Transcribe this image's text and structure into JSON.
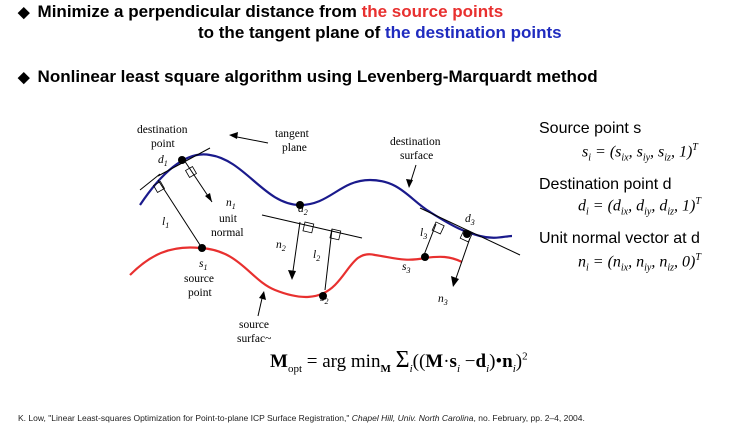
{
  "bullets": {
    "b1_line1_prefix": "Minimize a perpendicular distance from ",
    "b1_line1_highlight": "the source points",
    "b1_line2_prefix": "to the tangent plane of ",
    "b1_line2_highlight": "the destination points",
    "b2": "Nonlinear least square algorithm using Levenberg-Marquardt method",
    "marker": "◆"
  },
  "diagram": {
    "destination_point_label_1": "destination",
    "destination_point_label_2": "point",
    "d1": "d",
    "d1_sub": "1",
    "tangent_plane_1": "tangent",
    "tangent_plane_2": "plane",
    "destination_surface_1": "destination",
    "destination_surface_2": "surface",
    "n1": "n",
    "n1_sub": "1",
    "unit_normal_1": "unit",
    "unit_normal_2": "normal",
    "l1": "l",
    "l1_sub": "1",
    "d2": "d",
    "d2_sub": "2",
    "n2": "n",
    "n2_sub": "2",
    "l2": "l",
    "l2_sub": "2",
    "d3": "d",
    "d3_sub": "3",
    "l3": "l",
    "l3_sub": "3",
    "s1": "s",
    "s1_sub": "1",
    "source_point_1": "source",
    "source_point_2": "point",
    "s2": "s",
    "s2_sub": "2",
    "s3": "s",
    "s3_sub": "3",
    "n3": "n",
    "n3_sub": "3",
    "source_surface_1": "source",
    "source_surface_2": "surfac~"
  },
  "colors": {
    "destination_curve": "#1a1a8c",
    "source_curve": "#e8302f",
    "highlight_red": "#e8302f",
    "highlight_blue": "#1f2bbf"
  },
  "right_panel": {
    "source_title": "Source point s",
    "source_eq": "sᵢ = (s_ix, s_iy, s_iz, 1)ᵀ",
    "dest_title": "Destination point d",
    "dest_eq": "dᵢ = (d_ix, d_iy, d_iz, 1)ᵀ",
    "normal_title": "Unit normal vector at d",
    "normal_eq": "nᵢ = (n_ix, n_iy, n_iz, 0)ᵀ"
  },
  "formula": {
    "text": "M_opt = arg min_M Σ_i ((M·s_i − d_i)•n_i)²"
  },
  "footer": {
    "citation_plain": "K. Low, \"Linear Least-squares Optimization for Point-to-plane ICP Surface Registration,\" ",
    "citation_italic1": "Chapel Hill, Univ. North Carolina",
    "citation_plain2": ", no. February, pp. 2–4, 2004."
  }
}
